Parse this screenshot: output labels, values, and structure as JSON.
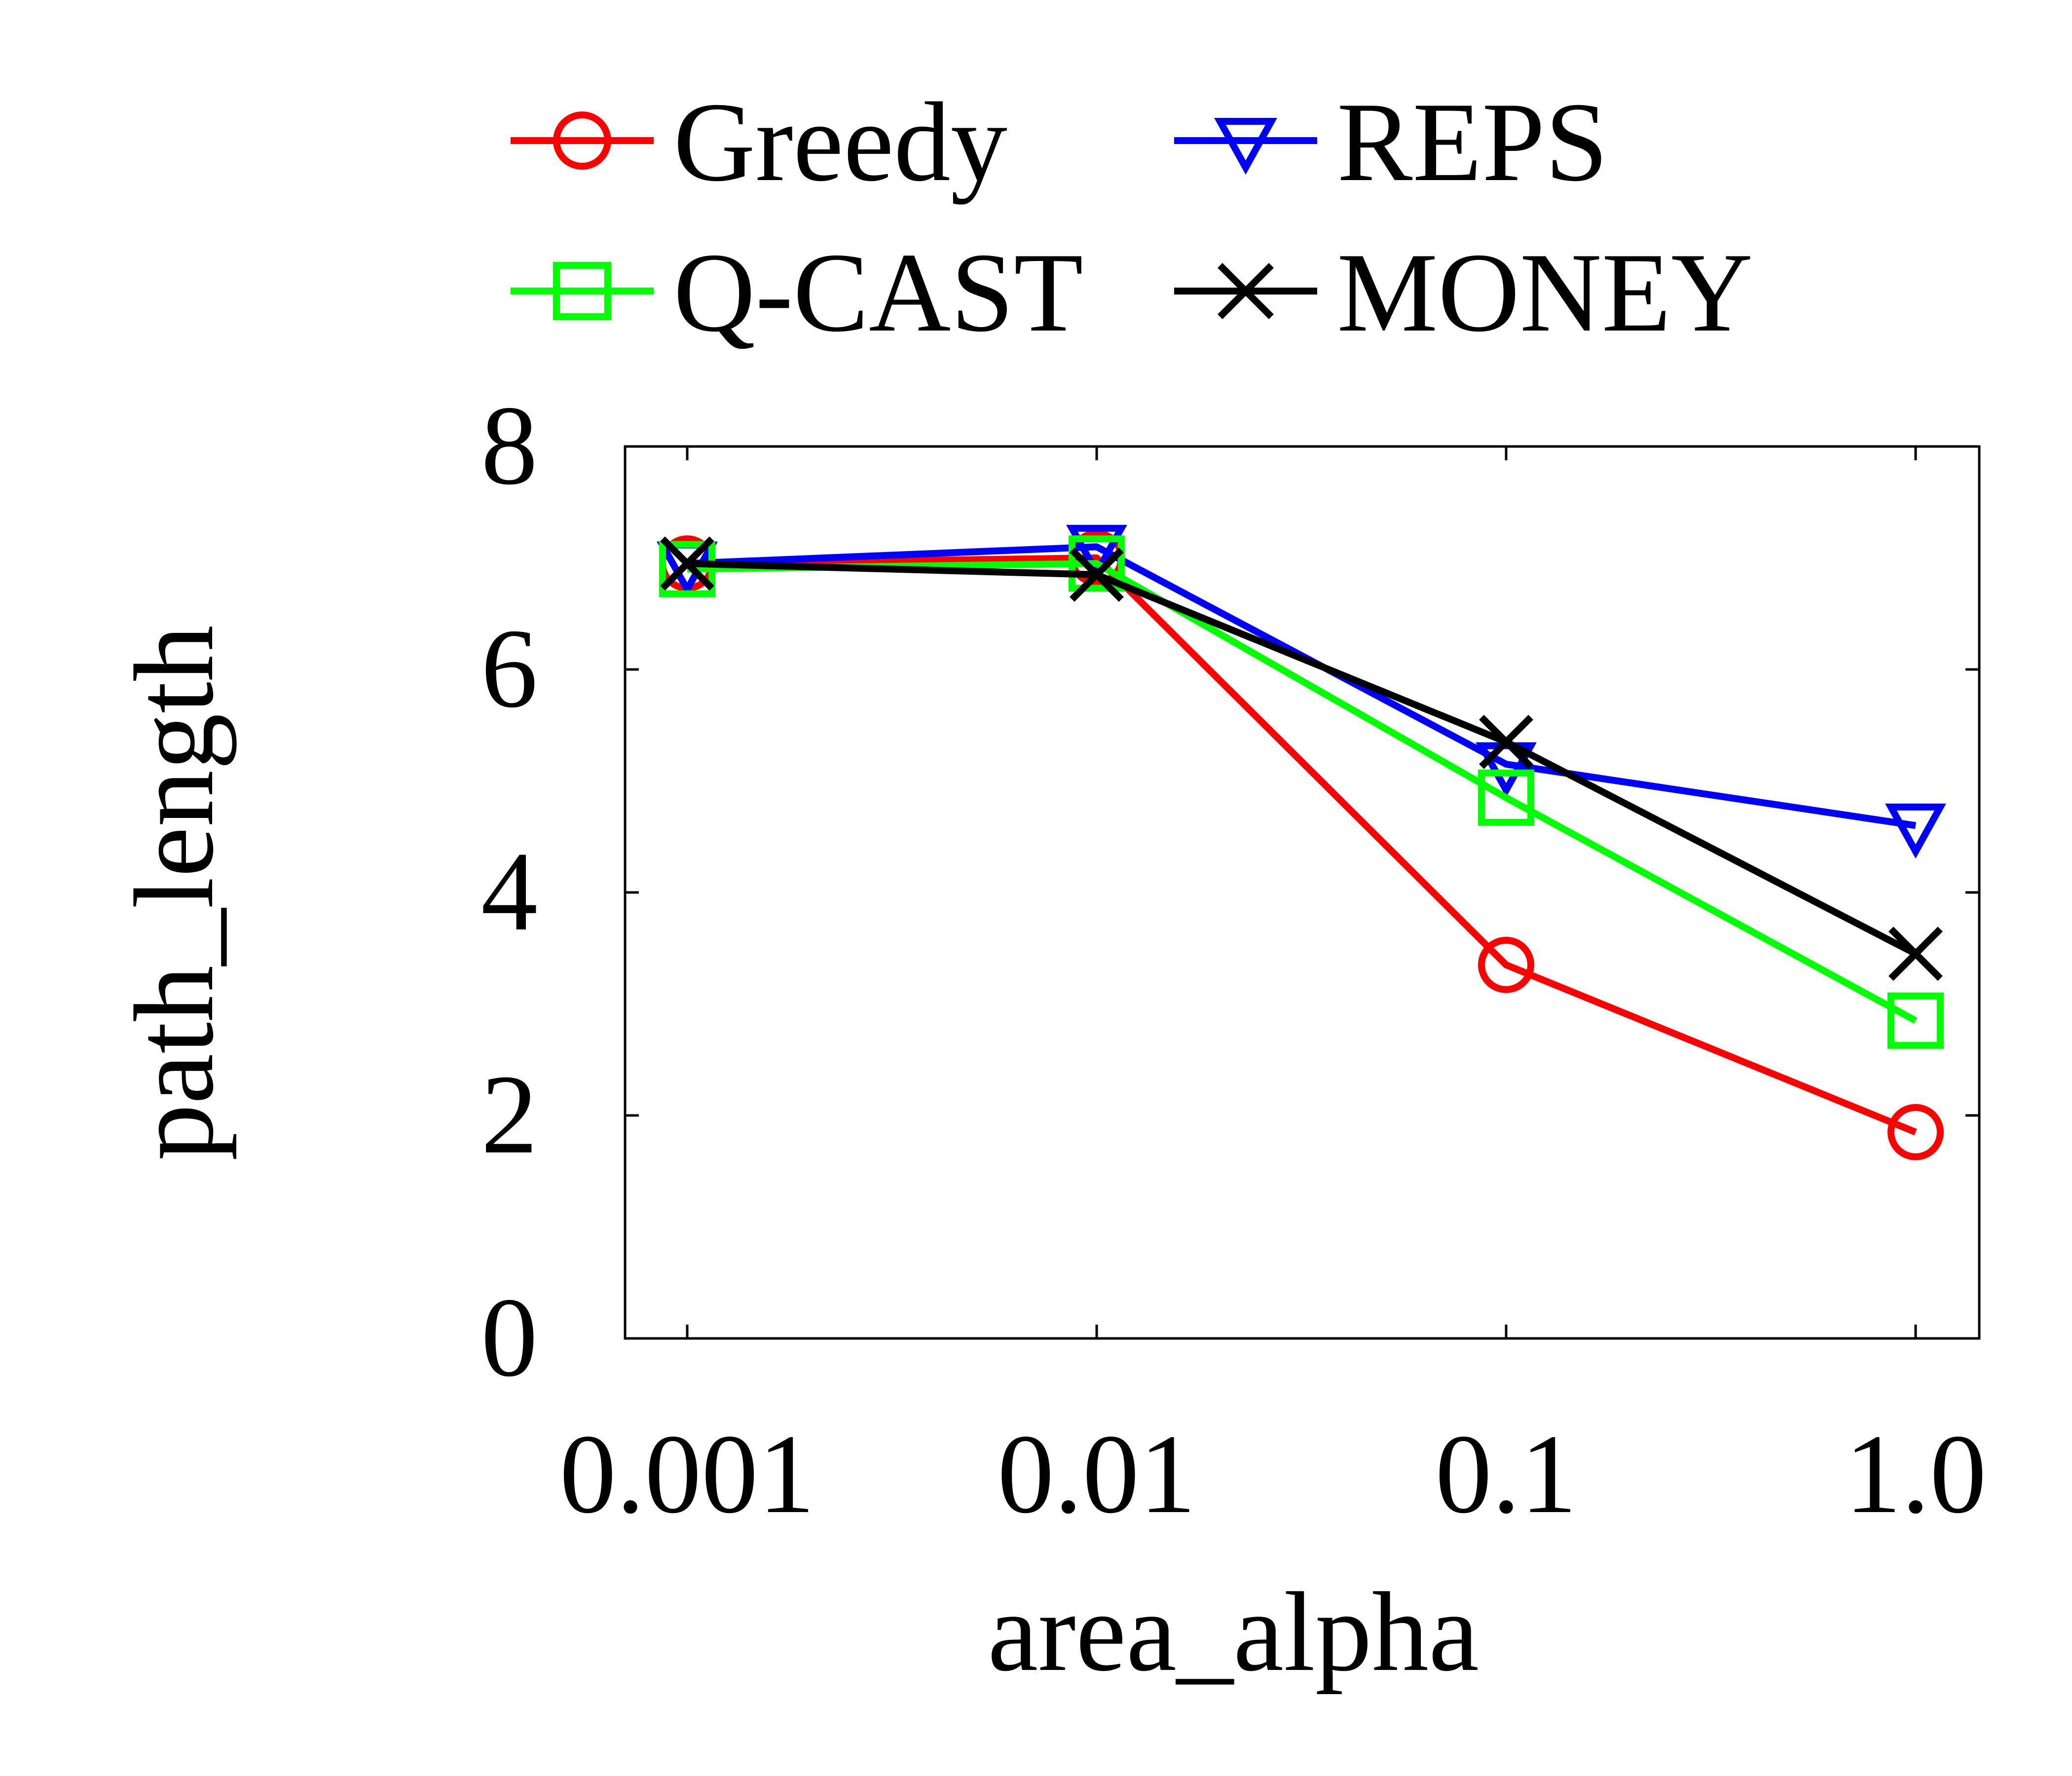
{
  "chart_data": {
    "type": "line",
    "title": "",
    "xlabel": "area_alpha",
    "ylabel": "path_length",
    "categories": [
      "0.001",
      "0.01",
      "0.1",
      "1.0"
    ],
    "ylim": [
      0,
      8
    ],
    "yticks": [
      "0",
      "2",
      "4",
      "6",
      "8"
    ],
    "grid": false,
    "legend_position": "top",
    "series": [
      {
        "name": "Greedy",
        "color": "#ff0000",
        "marker": "circle",
        "values": [
          6.95,
          7.0,
          3.35,
          1.85
        ]
      },
      {
        "name": "REPS",
        "color": "#0000ff",
        "marker": "triangle-down",
        "values": [
          6.95,
          7.1,
          5.15,
          4.6
        ]
      },
      {
        "name": "Q-CAST",
        "color": "#00ff00",
        "marker": "square",
        "values": [
          6.9,
          6.95,
          4.85,
          2.85
        ]
      },
      {
        "name": "MONEY",
        "color": "#000000",
        "marker": "x",
        "values": [
          6.95,
          6.85,
          5.35,
          3.45
        ]
      }
    ]
  }
}
